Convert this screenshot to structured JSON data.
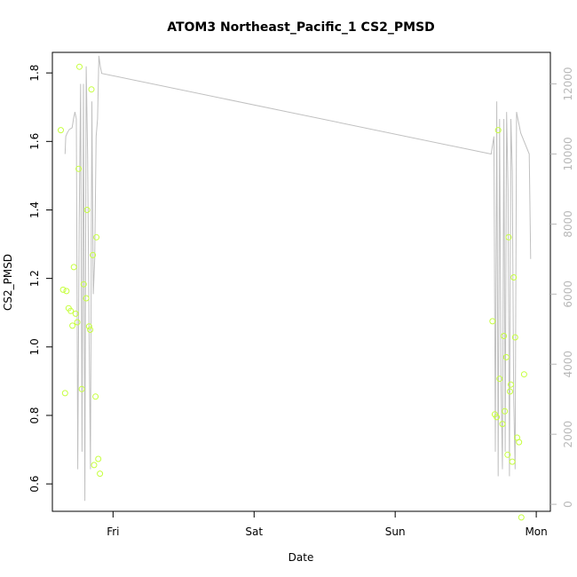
{
  "chart_data": {
    "type": "scatter",
    "title": "ATOM3 Northeast_Pacific_1 CS2_PMSD",
    "xlabel": "Date",
    "ylabel": "CS2_PMSD",
    "x_tick_labels": [
      "Fri",
      "Sat",
      "Sun",
      "Mon"
    ],
    "x_tick_days": [
      1,
      2,
      3,
      4
    ],
    "x_range_days": [
      0.57,
      4.1
    ],
    "ylim": [
      0.52,
      1.86
    ],
    "y_ticks": [
      0.6,
      0.8,
      1.0,
      1.2,
      1.4,
      1.6,
      1.8
    ],
    "y_tick_labels": [
      "0.6",
      "0.8",
      "1.0",
      "1.2",
      "1.4",
      "1.6",
      "1.8"
    ],
    "y2_lim": [
      -200,
      12900
    ],
    "y2_ticks": [
      0,
      2000,
      4000,
      6000,
      8000,
      10000,
      12000
    ],
    "y2_tick_labels": [
      "0",
      "2000",
      "4000",
      "6000",
      "8000",
      "10000",
      "12000"
    ],
    "grid": false,
    "colors": {
      "points": "#c6ff3e",
      "line": "#c0c0c0",
      "axis": "#000000",
      "right_axis": "#b8b8b8"
    },
    "series": [
      {
        "type": "scatter",
        "axis": "left",
        "x": [
          0.63,
          0.646,
          0.66,
          0.67,
          0.685,
          0.7,
          0.712,
          0.722,
          0.735,
          0.747,
          0.756,
          0.762,
          0.778,
          0.792,
          0.81,
          0.816,
          0.83,
          0.838,
          0.847,
          0.857,
          0.866,
          0.876,
          0.882,
          0.895,
          0.907
        ],
        "y": [
          1.633,
          1.167,
          0.865,
          1.163,
          1.113,
          1.105,
          1.062,
          1.233,
          1.097,
          1.072,
          1.52,
          1.818,
          0.877,
          1.183,
          1.142,
          1.4,
          1.06,
          1.05,
          1.752,
          1.268,
          0.655,
          0.855,
          1.32,
          0.673,
          0.63
        ]
      },
      {
        "type": "scatter",
        "axis": "left",
        "x": [
          3.69,
          3.706,
          3.72,
          3.73,
          3.74,
          3.76,
          3.77,
          3.777,
          3.787,
          3.797,
          3.804,
          3.814,
          3.82,
          3.83,
          3.84,
          3.85,
          3.864,
          3.878,
          3.894,
          3.914
        ],
        "y": [
          1.075,
          0.803,
          0.795,
          1.633,
          0.907,
          0.775,
          1.032,
          0.812,
          0.97,
          0.685,
          1.32,
          0.87,
          0.89,
          0.665,
          1.203,
          1.028,
          0.735,
          0.722,
          0.502,
          0.92
        ]
      },
      {
        "type": "line",
        "axis": "right",
        "x": [
          0.66,
          0.665,
          0.675,
          0.69,
          0.71,
          0.72,
          0.73,
          0.74,
          0.75,
          0.76,
          0.77,
          0.78,
          0.79,
          0.8,
          0.81,
          0.82,
          0.83,
          0.84,
          0.85,
          0.86,
          0.87,
          0.88,
          0.89,
          0.9,
          0.91,
          0.92,
          3.68,
          3.7,
          3.71,
          3.72,
          3.73,
          3.74,
          3.75,
          3.76,
          3.77,
          3.78,
          3.79,
          3.8,
          3.81,
          3.82,
          3.83,
          3.84,
          3.85,
          3.86,
          3.87,
          3.88,
          3.89,
          3.95,
          3.96
        ],
        "y": [
          10000,
          10500,
          10600,
          10700,
          10750,
          11000,
          11200,
          11000,
          1000,
          8000,
          12000,
          1500,
          12000,
          100,
          12500,
          10000,
          5000,
          1000,
          11500,
          6000,
          7000,
          10500,
          11000,
          12800,
          12500,
          12300,
          10000,
          10500,
          1500,
          11500,
          800,
          11000,
          3500,
          1000,
          11000,
          1500,
          11200,
          9000,
          800,
          11000,
          9500,
          3000,
          1000,
          11200,
          11000,
          10800,
          10600,
          10000,
          7000
        ]
      }
    ]
  }
}
